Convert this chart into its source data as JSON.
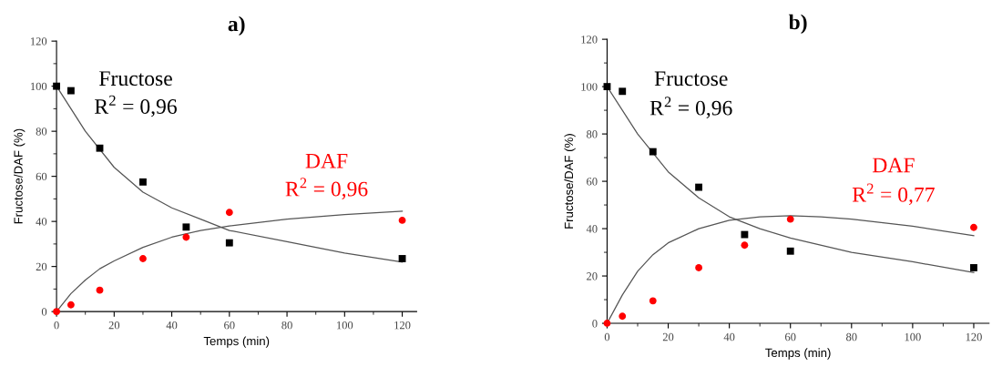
{
  "chart_data": [
    {
      "type": "scatter",
      "title": "a)",
      "xlabel": "Temps (min)",
      "ylabel": "Fructose/DAF (%)",
      "xlim": [
        0,
        125
      ],
      "ylim": [
        0,
        120
      ],
      "xticks": [
        0,
        20,
        40,
        60,
        80,
        100,
        120
      ],
      "yticks": [
        0,
        20,
        40,
        60,
        80,
        100,
        120
      ],
      "grid": false,
      "legend": false,
      "x": [
        0,
        5,
        15,
        30,
        45,
        60,
        120
      ],
      "series": [
        {
          "name": "Fructose",
          "color": "#000000",
          "marker": "square",
          "values": [
            100,
            98,
            72.5,
            57.5,
            37.5,
            30.5,
            23.5
          ]
        },
        {
          "name": "DAF",
          "color": "#ff0000",
          "marker": "circle",
          "values": [
            0,
            3,
            9.5,
            23.5,
            33,
            44,
            40.5
          ]
        },
        {
          "type": "line",
          "color": "#555555",
          "x": [
            0,
            10,
            20,
            30,
            40,
            50,
            60,
            80,
            100,
            120
          ],
          "values": [
            100,
            80,
            64,
            53,
            46,
            41,
            36,
            31,
            26,
            22
          ]
        },
        {
          "type": "line",
          "color": "#555555",
          "x": [
            0,
            5,
            10,
            15,
            20,
            30,
            40,
            50,
            60,
            80,
            100,
            120
          ],
          "values": [
            0,
            8,
            14,
            19,
            22.5,
            28.5,
            33,
            36,
            38,
            41,
            43,
            44.5
          ]
        }
      ],
      "annotations": [
        "R$^{2}$ = 0,96",
        "R$^{2}$ = 0,96"
      ]
    },
    {
      "type": "scatter",
      "title": "b)",
      "xlabel": "Temps (min)",
      "ylabel": "Fructose/DAF (%)",
      "xlim": [
        0,
        125
      ],
      "ylim": [
        0,
        120
      ],
      "xticks": [
        0,
        20,
        40,
        60,
        80,
        100,
        120
      ],
      "yticks": [
        0,
        20,
        40,
        60,
        80,
        100,
        120
      ],
      "grid": false,
      "legend": false,
      "x": [
        0,
        5,
        15,
        30,
        45,
        60,
        120
      ],
      "series": [
        {
          "name": "Fructose",
          "color": "#000000",
          "marker": "square",
          "values": [
            100,
            98,
            72.5,
            57.5,
            37.5,
            30.5,
            23.5
          ]
        },
        {
          "name": "DAF",
          "color": "#ff0000",
          "marker": "circle",
          "values": [
            0,
            3,
            9.5,
            23.5,
            33,
            44,
            40.5
          ]
        },
        {
          "type": "line",
          "color": "#555555",
          "x": [
            0,
            10,
            20,
            30,
            40,
            50,
            60,
            80,
            100,
            120
          ],
          "values": [
            100,
            80,
            64,
            53,
            45,
            40,
            36,
            30,
            26,
            21.5
          ]
        },
        {
          "type": "line",
          "color": "#555555",
          "x": [
            0,
            5,
            10,
            15,
            20,
            30,
            40,
            50,
            60,
            70,
            80,
            100,
            120
          ],
          "values": [
            0,
            12,
            22,
            29,
            34,
            40,
            43.5,
            45,
            45.5,
            45,
            44,
            41,
            37
          ]
        }
      ],
      "annotations": [
        "R$^{2}$ = 0,96",
        "R$^{2}$ = 0,77"
      ]
    }
  ]
}
